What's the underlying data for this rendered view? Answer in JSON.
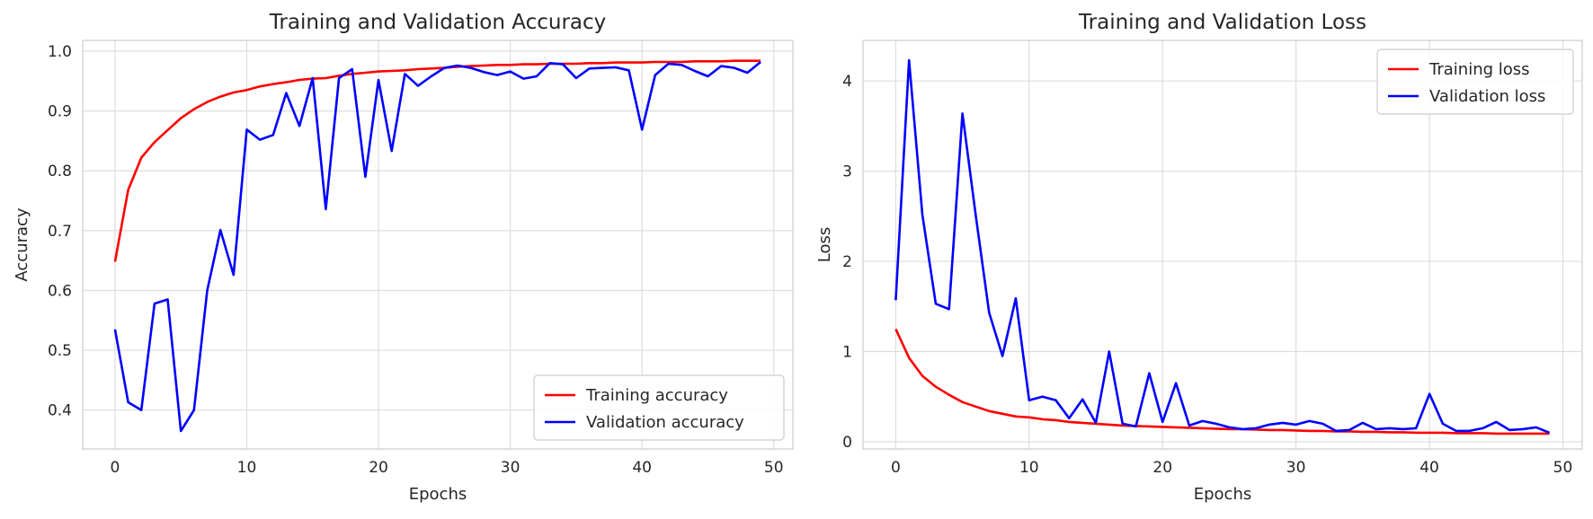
{
  "chart_data": [
    {
      "type": "line",
      "title": "Training and Validation Accuracy",
      "xlabel": "Epochs",
      "ylabel": "Accuracy",
      "xlim": [
        -2.45,
        51.45
      ],
      "ylim": [
        0.335,
        1.018
      ],
      "xticks": [
        0,
        10,
        20,
        30,
        40,
        50
      ],
      "yticks": [
        0.4,
        0.5,
        0.6,
        0.7,
        0.8,
        0.9,
        1.0
      ],
      "grid": true,
      "legend_position": "bottom-right",
      "x": [
        0,
        1,
        2,
        3,
        4,
        5,
        6,
        7,
        8,
        9,
        10,
        11,
        12,
        13,
        14,
        15,
        16,
        17,
        18,
        19,
        20,
        21,
        22,
        23,
        24,
        25,
        26,
        27,
        28,
        29,
        30,
        31,
        32,
        33,
        34,
        35,
        36,
        37,
        38,
        39,
        40,
        41,
        42,
        43,
        44,
        45,
        46,
        47,
        48,
        49
      ],
      "series": [
        {
          "name": "Training accuracy",
          "color": "#ff0000",
          "values": [
            0.648,
            0.768,
            0.822,
            0.848,
            0.868,
            0.888,
            0.903,
            0.915,
            0.924,
            0.931,
            0.935,
            0.941,
            0.945,
            0.948,
            0.952,
            0.954,
            0.955,
            0.959,
            0.962,
            0.964,
            0.966,
            0.967,
            0.968,
            0.97,
            0.971,
            0.972,
            0.974,
            0.975,
            0.976,
            0.977,
            0.977,
            0.978,
            0.978,
            0.979,
            0.979,
            0.979,
            0.98,
            0.98,
            0.981,
            0.981,
            0.981,
            0.982,
            0.982,
            0.982,
            0.983,
            0.983,
            0.983,
            0.984,
            0.984,
            0.984
          ]
        },
        {
          "name": "Validation accuracy",
          "color": "#0000ff",
          "values": [
            0.535,
            0.413,
            0.4,
            0.578,
            0.585,
            0.365,
            0.4,
            0.6,
            0.701,
            0.626,
            0.869,
            0.852,
            0.86,
            0.93,
            0.875,
            0.955,
            0.736,
            0.955,
            0.97,
            0.79,
            0.952,
            0.833,
            0.962,
            0.942,
            0.958,
            0.972,
            0.976,
            0.972,
            0.965,
            0.96,
            0.966,
            0.954,
            0.958,
            0.98,
            0.978,
            0.955,
            0.971,
            0.972,
            0.973,
            0.968,
            0.869,
            0.96,
            0.979,
            0.977,
            0.967,
            0.958,
            0.975,
            0.972,
            0.964,
            0.982
          ]
        }
      ]
    },
    {
      "type": "line",
      "title": "Training and Validation Loss",
      "xlabel": "Epochs",
      "ylabel": "Loss",
      "xlim": [
        -2.45,
        51.45
      ],
      "ylim": [
        -0.08,
        4.45
      ],
      "xticks": [
        0,
        10,
        20,
        30,
        40,
        50
      ],
      "yticks": [
        0,
        1,
        2,
        3,
        4
      ],
      "grid": true,
      "legend_position": "top-right",
      "x": [
        0,
        1,
        2,
        3,
        4,
        5,
        6,
        7,
        8,
        9,
        10,
        11,
        12,
        13,
        14,
        15,
        16,
        17,
        18,
        19,
        20,
        21,
        22,
        23,
        24,
        25,
        26,
        27,
        28,
        29,
        30,
        31,
        32,
        33,
        34,
        35,
        36,
        37,
        38,
        39,
        40,
        41,
        42,
        43,
        44,
        45,
        46,
        47,
        48,
        49
      ],
      "series": [
        {
          "name": "Training loss",
          "color": "#ff0000",
          "values": [
            1.25,
            0.93,
            0.73,
            0.61,
            0.52,
            0.44,
            0.39,
            0.34,
            0.31,
            0.28,
            0.27,
            0.25,
            0.24,
            0.22,
            0.21,
            0.2,
            0.19,
            0.18,
            0.175,
            0.17,
            0.165,
            0.16,
            0.155,
            0.15,
            0.145,
            0.14,
            0.14,
            0.135,
            0.13,
            0.13,
            0.125,
            0.12,
            0.12,
            0.115,
            0.115,
            0.11,
            0.11,
            0.105,
            0.105,
            0.1,
            0.1,
            0.1,
            0.095,
            0.095,
            0.095,
            0.09,
            0.09,
            0.09,
            0.09,
            0.09
          ]
        },
        {
          "name": "Validation loss",
          "color": "#0000ff",
          "values": [
            1.57,
            4.23,
            2.52,
            1.53,
            1.47,
            3.64,
            2.51,
            1.43,
            0.95,
            1.59,
            0.46,
            0.5,
            0.46,
            0.26,
            0.47,
            0.21,
            1.0,
            0.2,
            0.17,
            0.76,
            0.22,
            0.65,
            0.18,
            0.23,
            0.2,
            0.16,
            0.14,
            0.15,
            0.19,
            0.21,
            0.19,
            0.23,
            0.2,
            0.12,
            0.13,
            0.21,
            0.14,
            0.15,
            0.14,
            0.15,
            0.53,
            0.2,
            0.12,
            0.12,
            0.15,
            0.22,
            0.13,
            0.14,
            0.16,
            0.1
          ]
        }
      ]
    }
  ]
}
